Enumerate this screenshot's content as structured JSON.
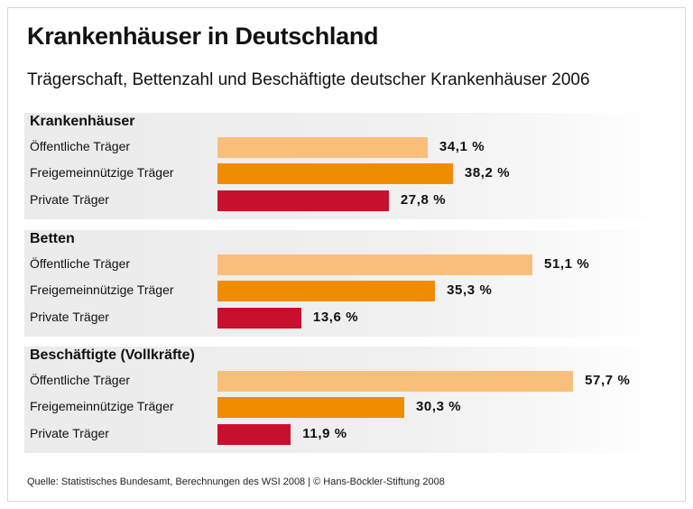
{
  "title": "Krankenhäuser in Deutschland",
  "subtitle": "Trägerschaft, Bettenzahl und Beschäftigte deutscher Krankenhäuser 2006",
  "source": "Quelle: Statistisches Bundesamt,  Berechnungen des WSI 2008 | © Hans-Böckler-Stiftung 2008",
  "colors": {
    "oeffentlich": "#f9bf7a",
    "freigemeinnuetzig": "#f08c00",
    "privat": "#c8102e"
  },
  "chart_data": {
    "type": "bar",
    "orientation": "horizontal",
    "unit": "%",
    "categories": [
      "Öffentliche Träger",
      "Freigemeinnützige Träger",
      "Private Träger"
    ],
    "groups": [
      {
        "name": "Krankenhäuser",
        "values": [
          34.1,
          38.2,
          27.8
        ],
        "labels": [
          "34,1 %",
          "38,2 %",
          "27,8 %"
        ]
      },
      {
        "name": "Betten",
        "values": [
          51.1,
          35.3,
          13.6
        ],
        "labels": [
          "51,1 %",
          "35,3 %",
          "13,6 %"
        ]
      },
      {
        "name": "Beschäftigte (Vollkräfte)",
        "values": [
          57.7,
          30.3,
          11.9
        ],
        "labels": [
          "57,7 %",
          "30,3 %",
          "11,9 %"
        ]
      }
    ],
    "xlim": [
      0,
      60
    ],
    "grid": false,
    "legend": "none"
  }
}
